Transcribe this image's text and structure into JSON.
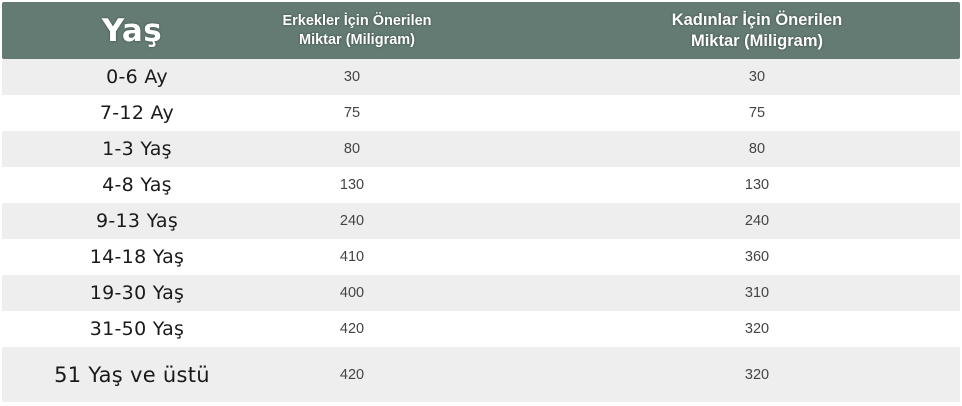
{
  "colors": {
    "header_bg": "#637b72",
    "row_shade": "#eeeeee",
    "row_plain": "#ffffff"
  },
  "header": {
    "age": "Yaş",
    "men_line1": "Erkekler İçin Önerilen",
    "men_line2": "Miktar (Miligram)",
    "women_line1": "Kadınlar İçin Önerilen",
    "women_line2": "Miktar (Miligram)"
  },
  "rows": [
    {
      "age": "0-6 Ay",
      "men": "30",
      "women": "30"
    },
    {
      "age": "7-12 Ay",
      "men": "75",
      "women": "75"
    },
    {
      "age": "1-3 Yaş",
      "men": "80",
      "women": "80"
    },
    {
      "age": "4-8 Yaş",
      "men": "130",
      "women": "130"
    },
    {
      "age": "9-13 Yaş",
      "men": "240",
      "women": "240"
    },
    {
      "age": "14-18 Yaş",
      "men": "410",
      "women": "360"
    },
    {
      "age": "19-30 Yaş",
      "men": "400",
      "women": "310"
    },
    {
      "age": "31-50 Yaş",
      "men": "420",
      "women": "320"
    },
    {
      "age": "51 Yaş ve üstü",
      "men": "420",
      "women": "320"
    }
  ]
}
